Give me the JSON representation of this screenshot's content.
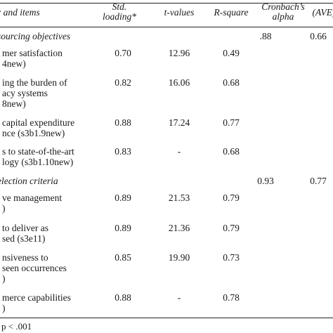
{
  "header": {
    "factor": "r and items",
    "loading": [
      "Std.",
      "loading*"
    ],
    "tvalues": "t-values",
    "rsquare": "R-square",
    "alpha": [
      "Cronbach’s",
      "alpha"
    ],
    "ave": "(AVE)"
  },
  "sections": [
    {
      "title": "sourcing objectives",
      "alpha": ".88",
      "ave": "0.66",
      "items": [
        {
          "lines": [
            "mer satisfaction",
            "4new)"
          ],
          "loading": "0.70",
          "t": "12.96",
          "r2": "0.49"
        },
        {
          "lines": [
            "ing the burden of",
            "acy systems",
            "8new)"
          ],
          "loading": "0.82",
          "t": "16.06",
          "r2": "0.68"
        },
        {
          "lines": [
            "capital expenditure",
            "nce (s3b1.9new)"
          ],
          "loading": "0.88",
          "t": "17.24",
          "r2": "0.77"
        },
        {
          "lines": [
            "s to state-of-the-art",
            "logy (s3b1.10new)"
          ],
          "loading": "0.83",
          "t": "-",
          "r2": "0.68"
        }
      ]
    },
    {
      "title": "election criteria",
      "alpha": "0.93",
      "ave": "0.77",
      "items": [
        {
          "lines": [
            "ve management",
            ")"
          ],
          "loading": "0.89",
          "t": "21.53",
          "r2": "0.79"
        },
        {
          "lines": [
            "to deliver as",
            "sed (s3e11)"
          ],
          "loading": "0.89",
          "t": "21.36",
          "r2": "0.79"
        },
        {
          "lines": [
            "nsiveness to",
            "seen occurrences",
            ")"
          ],
          "loading": "0.85",
          "t": "19.90",
          "r2": "0.73"
        },
        {
          "lines": [
            "merce capabilities",
            ")"
          ],
          "loading": "0.88",
          "t": "-",
          "r2": "0.78"
        }
      ]
    }
  ],
  "footnote": "p < .001"
}
